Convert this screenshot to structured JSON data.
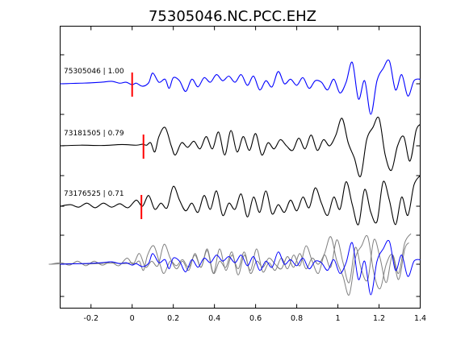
{
  "chart_data": {
    "type": "line",
    "title": "75305046.NC.PCC.EHZ",
    "xlabel": "",
    "ylabel": "",
    "xlim": [
      -0.35,
      1.4
    ],
    "xticks": [
      -0.2,
      0,
      0.2,
      0.4,
      0.6,
      0.8,
      1,
      1.2,
      1.4
    ],
    "xtick_labels": [
      "-0.2",
      "0",
      "0.2",
      "0.4",
      "0.6",
      "0.8",
      "1",
      "1.2",
      "1.4"
    ],
    "grid": false,
    "pick_color": "#ff0000",
    "traces": [
      {
        "label": "75305046 | 1.00",
        "event_id": "75305046",
        "correlation": "1.00",
        "color": "#0000ff",
        "pick_time": 0.0,
        "t": [
          -0.35,
          -0.3,
          -0.25,
          -0.2,
          -0.15,
          -0.1,
          -0.06,
          -0.03,
          0,
          0.02,
          0.05,
          0.08,
          0.1,
          0.13,
          0.16,
          0.18,
          0.2,
          0.23,
          0.26,
          0.29,
          0.32,
          0.35,
          0.38,
          0.41,
          0.44,
          0.47,
          0.5,
          0.53,
          0.56,
          0.59,
          0.62,
          0.65,
          0.68,
          0.71,
          0.74,
          0.77,
          0.8,
          0.83,
          0.86,
          0.89,
          0.92,
          0.95,
          0.98,
          1.01,
          1.04,
          1.07,
          1.1,
          1.13,
          1.16,
          1.19,
          1.22,
          1.25,
          1.28,
          1.31,
          1.34,
          1.37,
          1.4
        ],
        "v": [
          0,
          0.01,
          0.02,
          0.03,
          0.05,
          0.08,
          0.02,
          0.05,
          -0.03,
          0.02,
          -0.08,
          0.03,
          0.35,
          0.05,
          0.15,
          -0.15,
          0.2,
          0.1,
          -0.25,
          0.15,
          -0.1,
          0.2,
          0.05,
          0.3,
          0.1,
          0.25,
          0.05,
          0.3,
          -0.05,
          0.25,
          -0.2,
          0.1,
          -0.1,
          0.4,
          0,
          0.15,
          -0.05,
          0.2,
          -0.15,
          0.1,
          0.05,
          -0.2,
          0.15,
          -0.3,
          0.05,
          0.7,
          -0.5,
          0.1,
          -1.0,
          0.1,
          0.5,
          0.75,
          -0.2,
          0.3,
          -0.4,
          0.1,
          0.15
        ]
      },
      {
        "label": "73181505 | 0.79",
        "event_id": "73181505",
        "correlation": "0.79",
        "color": "#000000",
        "pick_time": 0.055,
        "t": [
          -0.35,
          -0.25,
          -0.15,
          -0.05,
          0.02,
          0.05,
          0.07,
          0.09,
          0.11,
          0.13,
          0.16,
          0.19,
          0.21,
          0.24,
          0.27,
          0.3,
          0.33,
          0.36,
          0.39,
          0.42,
          0.45,
          0.48,
          0.51,
          0.54,
          0.57,
          0.6,
          0.63,
          0.66,
          0.69,
          0.72,
          0.75,
          0.78,
          0.81,
          0.84,
          0.87,
          0.9,
          0.93,
          0.96,
          0.99,
          1.02,
          1.05,
          1.08,
          1.11,
          1.14,
          1.17,
          1.2,
          1.23,
          1.26,
          1.29,
          1.32,
          1.35,
          1.38,
          1.4
        ],
        "v": [
          0,
          0.02,
          0.01,
          0.04,
          0.02,
          0.05,
          0.02,
          0.1,
          -0.2,
          0.3,
          0.6,
          0.0,
          -0.3,
          0.1,
          -0.05,
          0.15,
          -0.1,
          0.3,
          -0.1,
          0.45,
          -0.3,
          0.5,
          -0.2,
          0.3,
          -0.15,
          0.4,
          -0.3,
          0.1,
          -0.1,
          0.2,
          0.0,
          -0.15,
          0.25,
          -0.1,
          0.35,
          -0.15,
          0.2,
          0.0,
          0.35,
          0.9,
          0.1,
          -0.4,
          -1.0,
          0.2,
          0.6,
          0.9,
          -0.3,
          -0.8,
          0.0,
          0.3,
          -0.5,
          0.5,
          0.7
        ]
      },
      {
        "label": "73176525 | 0.71",
        "event_id": "73176525",
        "correlation": "0.71",
        "color": "#000000",
        "pick_time": 0.045,
        "t": [
          -0.35,
          -0.3,
          -0.26,
          -0.22,
          -0.18,
          -0.14,
          -0.1,
          -0.06,
          -0.02,
          0.02,
          0.05,
          0.08,
          0.11,
          0.14,
          0.17,
          0.2,
          0.23,
          0.26,
          0.29,
          0.32,
          0.35,
          0.38,
          0.41,
          0.44,
          0.47,
          0.5,
          0.53,
          0.56,
          0.59,
          0.62,
          0.65,
          0.68,
          0.71,
          0.74,
          0.77,
          0.8,
          0.83,
          0.86,
          0.89,
          0.92,
          0.95,
          0.98,
          1.01,
          1.04,
          1.07,
          1.1,
          1.13,
          1.16,
          1.19,
          1.22,
          1.25,
          1.28,
          1.31,
          1.34,
          1.37,
          1.4
        ],
        "v": [
          0,
          0.05,
          -0.03,
          0.1,
          -0.05,
          0.1,
          -0.03,
          0.08,
          -0.05,
          0.2,
          0.0,
          0.35,
          -0.1,
          0.1,
          -0.05,
          0.65,
          0.2,
          -0.15,
          0.1,
          -0.2,
          0.35,
          -0.1,
          0.5,
          -0.3,
          0.1,
          -0.1,
          0.4,
          -0.35,
          0.3,
          -0.2,
          0.5,
          -0.25,
          0.05,
          -0.2,
          0.2,
          -0.15,
          0.3,
          -0.05,
          0.6,
          0.1,
          -0.3,
          0.3,
          -0.1,
          0.8,
          0.05,
          -0.6,
          0.55,
          -0.2,
          -0.5,
          0.8,
          0.2,
          -0.6,
          0.3,
          -0.3,
          0.7,
          1.0
        ]
      }
    ]
  }
}
